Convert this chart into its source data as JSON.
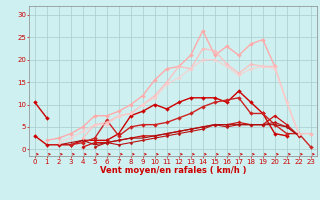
{
  "background_color": "#cff0f0",
  "grid_color": "#aacccc",
  "xlabel": "Vent moyen/en rafales ( km/h )",
  "xlabel_color": "#cc0000",
  "yticks": [
    0,
    5,
    10,
    15,
    20,
    25,
    30
  ],
  "xticks": [
    0,
    1,
    2,
    3,
    4,
    5,
    6,
    7,
    8,
    9,
    10,
    11,
    12,
    13,
    14,
    15,
    16,
    17,
    18,
    19,
    20,
    21,
    22,
    23
  ],
  "xlim": [
    -0.5,
    23.5
  ],
  "ylim": [
    -1.5,
    32
  ],
  "series": [
    {
      "x": [
        0,
        1,
        2,
        3,
        4,
        5,
        6,
        7,
        8,
        9,
        10,
        11,
        12,
        13,
        14,
        15,
        16,
        17,
        18,
        19,
        20,
        21
      ],
      "y": [
        3.0,
        1.0,
        1.0,
        1.0,
        2.0,
        2.0,
        2.0,
        3.5,
        7.5,
        8.5,
        10.0,
        9.0,
        10.5,
        11.5,
        11.5,
        11.5,
        10.5,
        13.0,
        10.5,
        8.0,
        3.5,
        3.0
      ],
      "color": "#cc0000",
      "lw": 1.0,
      "marker": "D",
      "markersize": 2.0,
      "alpha": 1.0
    },
    {
      "x": [
        0,
        1
      ],
      "y": [
        10.5,
        7.0
      ],
      "color": "#cc0000",
      "lw": 1.0,
      "marker": "D",
      "markersize": 2.0,
      "alpha": 1.0
    },
    {
      "x": [
        3,
        4,
        5,
        6,
        7,
        8,
        9,
        10,
        11,
        12,
        13,
        14,
        15,
        16,
        17,
        18,
        19,
        20,
        21,
        22,
        23
      ],
      "y": [
        1.0,
        1.5,
        2.5,
        6.5,
        3.0,
        5.0,
        5.5,
        5.5,
        6.0,
        7.0,
        8.0,
        9.5,
        10.5,
        11.0,
        11.5,
        8.0,
        8.0,
        5.5,
        3.5,
        3.5,
        0.5
      ],
      "color": "#cc2222",
      "lw": 1.0,
      "marker": "D",
      "markersize": 2.0,
      "alpha": 1.0
    },
    {
      "x": [
        4,
        5,
        6,
        7,
        8,
        9,
        10,
        11,
        12,
        13,
        14,
        15,
        16,
        17,
        18,
        19,
        20,
        21,
        22
      ],
      "y": [
        0.5,
        1.5,
        1.5,
        2.0,
        2.5,
        3.0,
        3.0,
        3.5,
        4.0,
        4.5,
        5.0,
        5.5,
        5.5,
        6.0,
        5.5,
        5.5,
        7.5,
        5.5,
        3.0
      ],
      "color": "#cc1111",
      "lw": 0.9,
      "marker": "D",
      "markersize": 1.8,
      "alpha": 1.0
    },
    {
      "x": [
        5,
        6,
        7,
        8,
        9,
        10,
        11,
        12,
        13,
        14,
        15,
        16,
        17,
        18,
        19,
        20,
        21,
        22
      ],
      "y": [
        0.5,
        1.5,
        1.0,
        1.5,
        2.0,
        2.5,
        3.0,
        3.5,
        4.0,
        4.5,
        5.5,
        5.0,
        5.5,
        5.5,
        5.5,
        6.0,
        5.0,
        3.0
      ],
      "color": "#bb1111",
      "lw": 0.8,
      "marker": "D",
      "markersize": 1.5,
      "alpha": 1.0
    },
    {
      "x": [
        2,
        3,
        4,
        5,
        6,
        7,
        8,
        9,
        10,
        11,
        12,
        13,
        14,
        15,
        16,
        17,
        18,
        19,
        20,
        21,
        22
      ],
      "y": [
        1.0,
        1.5,
        2.0,
        1.0,
        1.5,
        2.0,
        2.5,
        2.5,
        3.0,
        3.5,
        4.0,
        4.5,
        5.0,
        5.5,
        5.5,
        5.5,
        5.5,
        5.5,
        5.5,
        5.0,
        3.0
      ],
      "color": "#aa1111",
      "lw": 0.8,
      "marker": null,
      "markersize": 0,
      "alpha": 1.0
    },
    {
      "x": [
        1,
        2,
        3,
        4,
        5,
        6,
        7,
        8,
        9,
        10,
        11,
        12,
        13,
        14,
        15,
        16,
        17,
        18,
        19,
        20
      ],
      "y": [
        2.0,
        2.5,
        3.5,
        5.0,
        7.5,
        7.5,
        8.5,
        10.0,
        12.0,
        15.5,
        18.0,
        18.5,
        21.0,
        26.5,
        21.0,
        23.0,
        21.0,
        23.5,
        24.5,
        18.5
      ],
      "color": "#ffaaaa",
      "lw": 1.0,
      "marker": "D",
      "markersize": 2.0,
      "alpha": 1.0
    },
    {
      "x": [
        23
      ],
      "y": [
        3.5
      ],
      "color": "#ffaaaa",
      "lw": 1.0,
      "marker": "D",
      "markersize": 2.0,
      "alpha": 1.0
    },
    {
      "x": [
        4,
        5,
        6,
        7,
        8,
        9,
        10,
        11,
        12,
        13,
        14,
        15,
        16,
        17,
        18,
        19,
        20,
        21,
        22,
        23
      ],
      "y": [
        2.5,
        5.5,
        6.0,
        7.5,
        8.0,
        10.0,
        12.0,
        15.0,
        18.5,
        18.0,
        22.5,
        22.0,
        19.0,
        17.0,
        19.0,
        18.5,
        18.5,
        10.5,
        3.5,
        3.5
      ],
      "color": "#ffbbbb",
      "lw": 1.0,
      "marker": "D",
      "markersize": 1.8,
      "alpha": 0.85
    },
    {
      "x": [
        2,
        3,
        4,
        5,
        6,
        7,
        8,
        9,
        10,
        11,
        12,
        13,
        14,
        15,
        16,
        17,
        18,
        19,
        20,
        21,
        22
      ],
      "y": [
        1.5,
        2.5,
        4.0,
        5.5,
        5.5,
        7.5,
        8.0,
        10.0,
        11.5,
        14.5,
        16.0,
        18.0,
        20.0,
        20.0,
        18.5,
        16.5,
        18.0,
        18.5,
        18.0,
        10.5,
        3.5
      ],
      "color": "#ffcccc",
      "lw": 1.0,
      "marker": "D",
      "markersize": 1.8,
      "alpha": 0.75
    }
  ],
  "arrow_color": "#cc0000",
  "tick_color": "#cc0000",
  "tick_fontsize": 5.0,
  "xlabel_fontsize": 6.0
}
